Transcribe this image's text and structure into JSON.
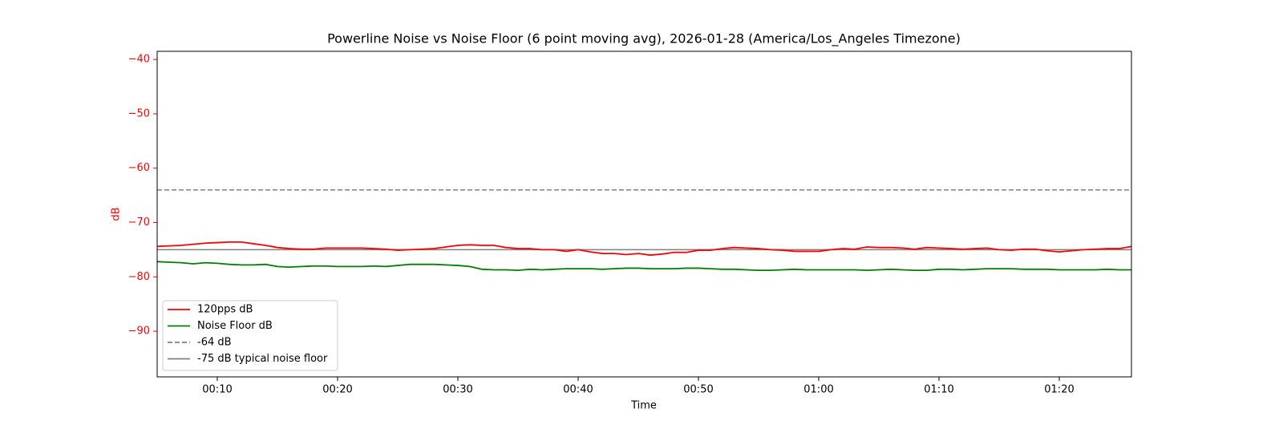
{
  "chart_data": {
    "type": "line",
    "title": "Powerline Noise vs Noise Floor (6 point moving avg), 2026-01-28 (America/Los_Angeles Timezone)",
    "xlabel": "Time",
    "ylabel": "dB",
    "ylabel_color": "#ff0000",
    "ytick_color": "#ff0000",
    "x": [
      5,
      6,
      7,
      8,
      9,
      10,
      11,
      12,
      13,
      14,
      15,
      16,
      17,
      18,
      19,
      20,
      21,
      22,
      23,
      24,
      25,
      26,
      27,
      28,
      29,
      30,
      31,
      32,
      33,
      34,
      35,
      36,
      37,
      38,
      39,
      40,
      41,
      42,
      43,
      44,
      45,
      46,
      47,
      48,
      49,
      50,
      51,
      52,
      53,
      54,
      55,
      56,
      57,
      58,
      59,
      60,
      61,
      62,
      63,
      64,
      65,
      66,
      67,
      68,
      69,
      70,
      71,
      72,
      73,
      74,
      75,
      76,
      77,
      78,
      79,
      80,
      81,
      82,
      83,
      84,
      85,
      86
    ],
    "series": [
      {
        "name": "120pps dB",
        "color": "#ff0000",
        "values": [
          -74.4,
          -74.3,
          -74.2,
          -74.0,
          -73.8,
          -73.7,
          -73.6,
          -73.6,
          -73.9,
          -74.2,
          -74.6,
          -74.8,
          -74.9,
          -74.9,
          -74.7,
          -74.7,
          -74.7,
          -74.7,
          -74.8,
          -74.9,
          -75.1,
          -75.0,
          -74.9,
          -74.8,
          -74.5,
          -74.2,
          -74.1,
          -74.2,
          -74.2,
          -74.6,
          -74.8,
          -74.8,
          -75.0,
          -75.0,
          -75.3,
          -75.0,
          -75.4,
          -75.7,
          -75.7,
          -75.9,
          -75.7,
          -76.0,
          -75.8,
          -75.5,
          -75.5,
          -75.1,
          -75.1,
          -74.8,
          -74.6,
          -74.7,
          -74.8,
          -75.0,
          -75.1,
          -75.3,
          -75.3,
          -75.3,
          -75.0,
          -74.8,
          -74.9,
          -74.5,
          -74.6,
          -74.6,
          -74.7,
          -74.9,
          -74.6,
          -74.7,
          -74.8,
          -74.9,
          -74.8,
          -74.7,
          -75.0,
          -75.1,
          -74.9,
          -74.9,
          -75.2,
          -75.4,
          -75.2,
          -75.0,
          -74.9,
          -74.8,
          -74.8,
          -74.4
        ]
      },
      {
        "name": "Noise Floor dB",
        "color": "#008000",
        "values": [
          -77.2,
          -77.3,
          -77.4,
          -77.6,
          -77.4,
          -77.5,
          -77.7,
          -77.8,
          -77.8,
          -77.7,
          -78.1,
          -78.2,
          -78.1,
          -78.0,
          -78.0,
          -78.1,
          -78.1,
          -78.1,
          -78.0,
          -78.1,
          -77.9,
          -77.7,
          -77.7,
          -77.7,
          -77.8,
          -77.9,
          -78.1,
          -78.6,
          -78.7,
          -78.7,
          -78.8,
          -78.6,
          -78.7,
          -78.6,
          -78.5,
          -78.5,
          -78.5,
          -78.6,
          -78.5,
          -78.4,
          -78.4,
          -78.5,
          -78.5,
          -78.5,
          -78.4,
          -78.4,
          -78.5,
          -78.6,
          -78.6,
          -78.7,
          -78.8,
          -78.8,
          -78.7,
          -78.6,
          -78.7,
          -78.7,
          -78.7,
          -78.7,
          -78.7,
          -78.8,
          -78.7,
          -78.6,
          -78.7,
          -78.8,
          -78.8,
          -78.6,
          -78.6,
          -78.7,
          -78.6,
          -78.5,
          -78.5,
          -78.5,
          -78.6,
          -78.6,
          -78.6,
          -78.7,
          -78.7,
          -78.7,
          -78.7,
          -78.6,
          -78.7,
          -78.7
        ]
      }
    ],
    "hlines": [
      {
        "name": "-64 dB",
        "value": -64,
        "color": "#808080",
        "style": "dashed"
      },
      {
        "name": "-75 dB typical noise floor",
        "value": -75,
        "color": "#808080",
        "style": "solid"
      }
    ],
    "xlim": [
      5,
      86
    ],
    "xticks": [
      {
        "value": 10,
        "label": "00:10"
      },
      {
        "value": 20,
        "label": "00:20"
      },
      {
        "value": 30,
        "label": "00:30"
      },
      {
        "value": 40,
        "label": "00:40"
      },
      {
        "value": 50,
        "label": "00:50"
      },
      {
        "value": 60,
        "label": "01:00"
      },
      {
        "value": 70,
        "label": "01:10"
      },
      {
        "value": 80,
        "label": "01:20"
      }
    ],
    "ylim": [
      -98.4,
      -38.5
    ],
    "yticks": [
      {
        "value": -40,
        "label": "−40"
      },
      {
        "value": -50,
        "label": "−50"
      },
      {
        "value": -60,
        "label": "−60"
      },
      {
        "value": -70,
        "label": "−70"
      },
      {
        "value": -80,
        "label": "−80"
      },
      {
        "value": -90,
        "label": "−90"
      }
    ],
    "legend": "lower left"
  }
}
